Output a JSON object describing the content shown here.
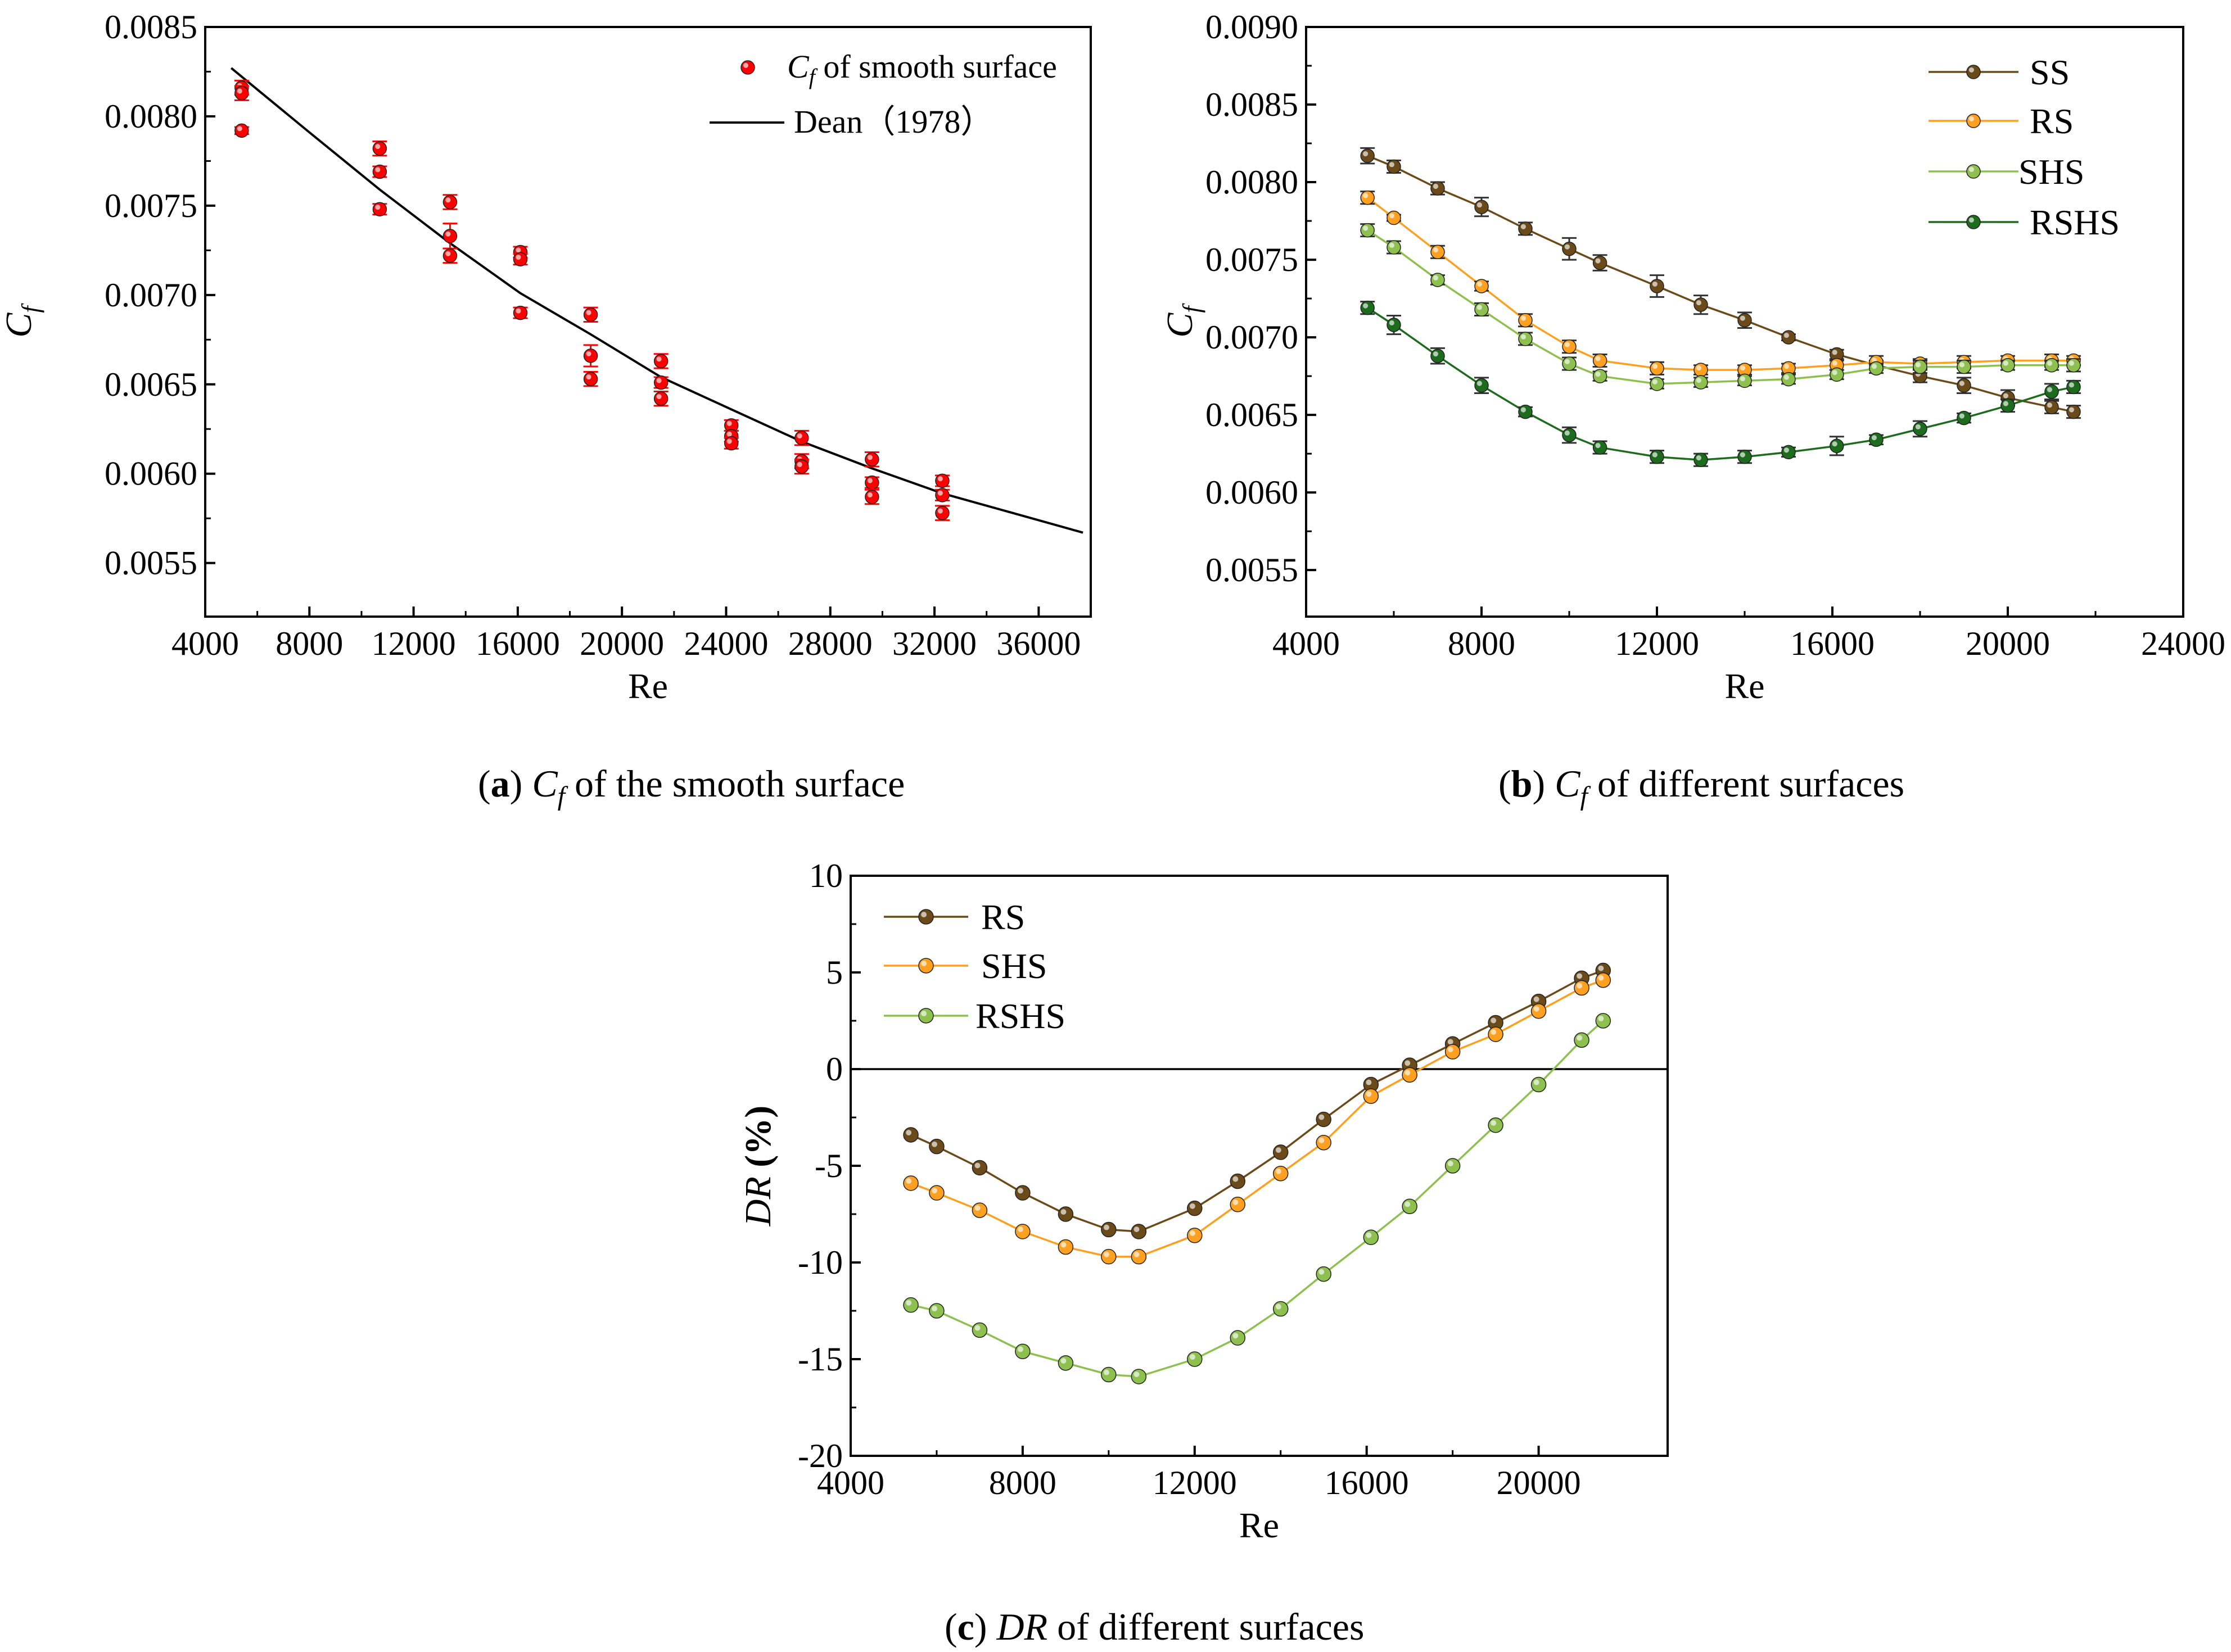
{
  "chart_data": [
    {
      "id": "a",
      "type": "scatter",
      "caption": {
        "letter": "a",
        "prefix": "C",
        "sub": "f",
        "text": " of the smooth surface"
      },
      "xlabel": "Re",
      "ylabel": {
        "main": "C",
        "sub": "f"
      },
      "xlim": [
        4000,
        38000
      ],
      "ylim": [
        0.0052,
        0.0085
      ],
      "xticks": [
        4000,
        8000,
        12000,
        16000,
        20000,
        24000,
        28000,
        32000,
        36000
      ],
      "xtick_labels": [
        "4000",
        "8000",
        "12000",
        "16000",
        "20000",
        "24000",
        "28000",
        "32000",
        "36000"
      ],
      "yticks": [
        0.0055,
        0.006,
        0.0065,
        0.007,
        0.0075,
        0.008,
        0.0085
      ],
      "ytick_labels": [
        "0.0055",
        "0.0060",
        "0.0065",
        "0.0070",
        "0.0075",
        "0.0080",
        "0.0085"
      ],
      "legend": {
        "position": "top-right",
        "scatter_label_main": "C",
        "scatter_label_sub": "f",
        "scatter_label_rest": " of smooth surface",
        "line_label": "Dean（1978）"
      },
      "series": [
        {
          "name": "Cf of smooth surface",
          "kind": "scatter",
          "color": "#ff0000",
          "x": [
            5400,
            5400,
            5400,
            10700,
            10700,
            10700,
            13400,
            13400,
            13400,
            16100,
            16100,
            16100,
            18800,
            18800,
            18800,
            21500,
            21500,
            21500,
            24200,
            24200,
            24200,
            26900,
            26900,
            26900,
            29600,
            29600,
            29600,
            32300,
            32300,
            32300
          ],
          "y": [
            0.00816,
            0.00813,
            0.00792,
            0.00782,
            0.00769,
            0.00748,
            0.00752,
            0.00733,
            0.00722,
            0.00724,
            0.0072,
            0.0069,
            0.00689,
            0.00666,
            0.00653,
            0.00663,
            0.00651,
            0.00642,
            0.00627,
            0.00621,
            0.00617,
            0.0062,
            0.00607,
            0.00604,
            0.00608,
            0.00595,
            0.00587,
            0.00596,
            0.00588,
            0.00578
          ],
          "err": [
            4e-05,
            4e-05,
            2e-05,
            4e-05,
            3e-05,
            3e-05,
            4e-05,
            7e-05,
            4e-05,
            3e-05,
            3e-05,
            3e-05,
            4e-05,
            6e-05,
            4e-05,
            4e-05,
            3e-05,
            4e-05,
            3e-05,
            3e-05,
            3e-05,
            4e-05,
            4e-05,
            4e-05,
            4e-05,
            3e-05,
            4e-05,
            3e-05,
            3e-05,
            4e-05
          ]
        },
        {
          "name": "Dean（1978）",
          "kind": "line",
          "color": "#000000",
          "x": [
            5000,
            8000,
            10700,
            13400,
            16100,
            18800,
            21500,
            24200,
            26900,
            29600,
            32300,
            35000,
            37700
          ],
          "y": [
            0.00827,
            0.00791,
            0.00759,
            0.00729,
            0.00701,
            0.00678,
            0.00654,
            0.00636,
            0.00618,
            0.00603,
            0.00589,
            0.00578,
            0.00567
          ]
        }
      ]
    },
    {
      "id": "b",
      "type": "line",
      "caption": {
        "letter": "b",
        "prefix": "C",
        "sub": "f",
        "text": " of different surfaces"
      },
      "xlabel": "Re",
      "ylabel": {
        "main": "C",
        "sub": "f"
      },
      "xlim": [
        4000,
        24000
      ],
      "ylim": [
        0.0052,
        0.009
      ],
      "xticks": [
        4000,
        8000,
        12000,
        16000,
        20000,
        24000
      ],
      "xtick_labels": [
        "4000",
        "8000",
        "12000",
        "16000",
        "20000",
        "24000"
      ],
      "yticks": [
        0.0055,
        0.006,
        0.0065,
        0.007,
        0.0075,
        0.008,
        0.0085,
        0.009
      ],
      "ytick_labels": [
        "0.0055",
        "0.0060",
        "0.0065",
        "0.0070",
        "0.0075",
        "0.0080",
        "0.0085",
        "0.0090"
      ],
      "legend": {
        "position": "top-right"
      },
      "x": [
        5400,
        6000,
        7000,
        8000,
        9000,
        10000,
        10700,
        12000,
        13000,
        14000,
        15000,
        16100,
        17000,
        18000,
        19000,
        20000,
        21000,
        21500
      ],
      "series": [
        {
          "name": "SS",
          "color": "#6b4a1a",
          "values": [
            0.00817,
            0.0081,
            0.00796,
            0.00784,
            0.0077,
            0.00757,
            0.00748,
            0.00733,
            0.00721,
            0.00711,
            0.007,
            0.00689,
            0.00682,
            0.00675,
            0.00669,
            0.00661,
            0.00655,
            0.00652
          ],
          "err": [
            5e-05,
            4e-05,
            4e-05,
            6e-05,
            4e-05,
            7e-05,
            5e-05,
            7e-05,
            6e-05,
            5e-05,
            2e-05,
            3e-05,
            3e-05,
            4e-05,
            5e-05,
            5e-05,
            4e-05,
            4e-05
          ]
        },
        {
          "name": "RS",
          "color": "#ffa020",
          "values": [
            0.0079,
            0.00777,
            0.00755,
            0.00733,
            0.00711,
            0.00694,
            0.00685,
            0.0068,
            0.00679,
            0.00679,
            0.0068,
            0.00682,
            0.00684,
            0.00683,
            0.00684,
            0.00685,
            0.00685,
            0.00685
          ],
          "err": [
            4e-05,
            2e-05,
            4e-05,
            3e-05,
            4e-05,
            4e-05,
            4e-05,
            4e-05,
            3e-05,
            3e-05,
            3e-05,
            3e-05,
            4e-05,
            3e-05,
            4e-05,
            3e-05,
            4e-05,
            3e-05
          ]
        },
        {
          "name": "SHS",
          "color": "#8ec050",
          "values": [
            0.00769,
            0.00758,
            0.00737,
            0.00718,
            0.00699,
            0.00683,
            0.00675,
            0.0067,
            0.00671,
            0.00672,
            0.00673,
            0.00676,
            0.0068,
            0.00681,
            0.00681,
            0.00682,
            0.00682,
            0.00682
          ],
          "err": [
            4e-05,
            4e-05,
            3e-05,
            4e-05,
            4e-05,
            4e-05,
            3e-05,
            3e-05,
            3e-05,
            3e-05,
            3e-05,
            3e-05,
            3e-05,
            4e-05,
            4e-05,
            3e-05,
            3e-05,
            4e-05
          ]
        },
        {
          "name": "RSHS",
          "color": "#1d6b1d",
          "values": [
            0.00719,
            0.00708,
            0.00688,
            0.00669,
            0.00652,
            0.00637,
            0.00629,
            0.00623,
            0.00621,
            0.00623,
            0.00626,
            0.0063,
            0.00634,
            0.00641,
            0.00648,
            0.00656,
            0.00665,
            0.00668
          ],
          "err": [
            4e-05,
            6e-05,
            5e-05,
            5e-05,
            3e-05,
            5e-05,
            4e-05,
            4e-05,
            4e-05,
            4e-05,
            3e-05,
            6e-05,
            3e-05,
            5e-05,
            3e-05,
            4e-05,
            5e-05,
            4e-05
          ]
        }
      ]
    },
    {
      "id": "c",
      "type": "line",
      "caption": {
        "letter": "c",
        "prefix": "DR",
        "sub": "",
        "text": " of different surfaces"
      },
      "xlabel": "Re",
      "ylabel": {
        "main": "DR",
        "rest": " (%)"
      },
      "xlim": [
        4000,
        23000
      ],
      "ylim": [
        -20,
        10
      ],
      "xticks": [
        4000,
        8000,
        12000,
        16000,
        20000
      ],
      "xtick_labels": [
        "4000",
        "8000",
        "12000",
        "16000",
        "20000"
      ],
      "yticks": [
        -20,
        -15,
        -10,
        -5,
        0,
        5,
        10
      ],
      "ytick_labels": [
        "-20",
        "-15",
        "-10",
        "-5",
        "0",
        "5",
        "10"
      ],
      "zero_line": true,
      "legend": {
        "position": "top-left"
      },
      "x": [
        5400,
        6000,
        7000,
        8000,
        9000,
        10000,
        10700,
        12000,
        13000,
        14000,
        15000,
        16100,
        17000,
        18000,
        19000,
        20000,
        21000,
        21500
      ],
      "series": [
        {
          "name": "RS",
          "color": "#6b4a1a",
          "values": [
            -3.4,
            -4.0,
            -5.1,
            -6.4,
            -7.5,
            -8.3,
            -8.4,
            -7.2,
            -5.8,
            -4.3,
            -2.6,
            -0.8,
            0.2,
            1.3,
            2.4,
            3.5,
            4.7,
            5.1
          ]
        },
        {
          "name": "SHS",
          "color": "#ffa020",
          "values": [
            -5.9,
            -6.4,
            -7.3,
            -8.4,
            -9.2,
            -9.7,
            -9.7,
            -8.6,
            -7.0,
            -5.4,
            -3.8,
            -1.4,
            -0.3,
            0.9,
            1.8,
            3.0,
            4.2,
            4.6
          ]
        },
        {
          "name": "RSHS",
          "color": "#8ec050",
          "values": [
            -12.2,
            -12.5,
            -13.5,
            -14.6,
            -15.2,
            -15.8,
            -15.9,
            -15.0,
            -13.9,
            -12.4,
            -10.6,
            -8.7,
            -7.1,
            -5.0,
            -2.9,
            -0.8,
            1.5,
            2.5
          ]
        }
      ]
    }
  ]
}
